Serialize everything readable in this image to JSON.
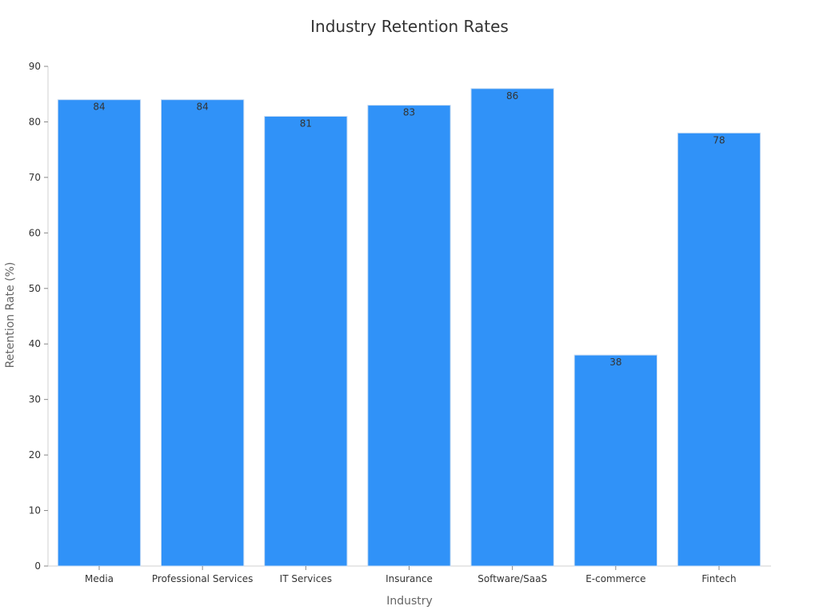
{
  "chart_data": {
    "type": "bar",
    "title": "Industry Retention Rates",
    "xlabel": "Industry",
    "ylabel": "Retention Rate (%)",
    "categories": [
      "Media",
      "Professional Services",
      "IT Services",
      "Insurance",
      "Software/SaaS",
      "E-commerce",
      "Fintech"
    ],
    "values": [
      84,
      84,
      81,
      83,
      86,
      38,
      78
    ],
    "ylim": [
      0,
      90
    ],
    "yticks": [
      0,
      10,
      20,
      30,
      40,
      50,
      60,
      70,
      80,
      90
    ],
    "grid": false,
    "legend": "none",
    "bar_color": "#3092F8",
    "bar_edge_color": "#c8dcf3",
    "axis_color": "#d0d0d0"
  }
}
